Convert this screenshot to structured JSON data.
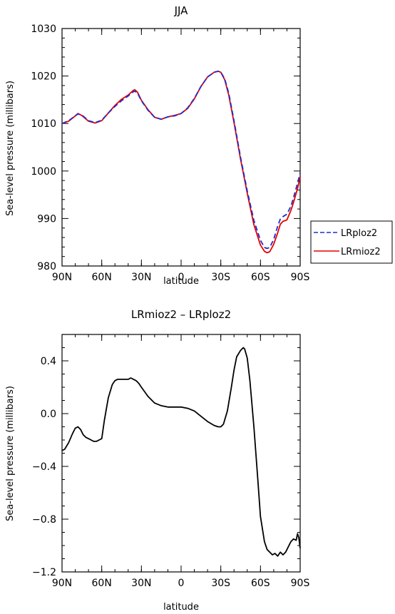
{
  "chart_data": [
    {
      "type": "line",
      "title": "JJA",
      "xlabel": "latitude",
      "ylabel": "Sea-level pressure (millibars)",
      "xlim": [
        90,
        -90
      ],
      "ylim": [
        980,
        1030
      ],
      "x_ticks": [
        90,
        60,
        30,
        0,
        -30,
        -60,
        -90
      ],
      "x_tick_labels": [
        "90N",
        "60N",
        "30N",
        "0",
        "30S",
        "60S",
        "90S"
      ],
      "y_ticks": [
        980,
        990,
        1000,
        1010,
        1020,
        1030
      ],
      "y_tick_labels": [
        "980",
        "990",
        "1000",
        "1010",
        "1020",
        "1030"
      ],
      "grid": false,
      "legend": "outside-right",
      "series": [
        {
          "name": "LRploz2",
          "color": "#1f2ecc",
          "dash": "dashed",
          "x": [
            90,
            85,
            80,
            78,
            75,
            70,
            65,
            60,
            55,
            50,
            45,
            40,
            36,
            35,
            33,
            30,
            25,
            20,
            15,
            10,
            5,
            0,
            -5,
            -10,
            -15,
            -20,
            -25,
            -28,
            -30,
            -33,
            -36,
            -40,
            -45,
            -50,
            -55,
            -60,
            -63,
            -65,
            -67,
            -70,
            -73,
            -75,
            -77,
            -80,
            -83,
            -85,
            -88,
            -90
          ],
          "y": [
            1010,
            1010.6,
            1011.6,
            1012.0,
            1011.8,
            1010.6,
            1010.2,
            1010.7,
            1012.2,
            1013.6,
            1014.8,
            1015.8,
            1016.7,
            1016.8,
            1016.4,
            1014.8,
            1012.8,
            1011.3,
            1010.9,
            1011.4,
            1011.6,
            1012.1,
            1013.3,
            1015.3,
            1017.8,
            1019.8,
            1020.8,
            1021.0,
            1020.8,
            1019.4,
            1016.4,
            1010.6,
            1002.8,
            995.8,
            989.6,
            985.4,
            983.9,
            983.7,
            983.9,
            985.6,
            988.4,
            989.9,
            990.4,
            990.9,
            992.6,
            994.4,
            997.4,
            999.6
          ]
        },
        {
          "name": "LRmioz2",
          "color": "#e60000",
          "dash": "solid",
          "x": [
            90,
            85,
            80,
            78,
            75,
            70,
            65,
            60,
            55,
            50,
            45,
            40,
            36,
            35,
            33,
            30,
            25,
            20,
            15,
            10,
            5,
            0,
            -5,
            -10,
            -15,
            -20,
            -25,
            -28,
            -30,
            -33,
            -36,
            -40,
            -45,
            -50,
            -55,
            -60,
            -63,
            -65,
            -67,
            -70,
            -73,
            -75,
            -77,
            -80,
            -83,
            -85,
            -88,
            -90
          ],
          "y": [
            1010,
            1010.5,
            1011.6,
            1012.1,
            1011.7,
            1010.5,
            1010.1,
            1010.6,
            1012.2,
            1013.8,
            1015.1,
            1016.0,
            1017.0,
            1017.1,
            1016.6,
            1014.9,
            1012.9,
            1011.3,
            1010.9,
            1011.4,
            1011.7,
            1012.1,
            1013.2,
            1015.2,
            1017.8,
            1019.8,
            1020.8,
            1021.0,
            1020.8,
            1019.2,
            1016.0,
            1010.2,
            1002.4,
            995.3,
            988.7,
            984.4,
            983.1,
            982.8,
            983.0,
            984.6,
            987.0,
            988.8,
            989.4,
            989.7,
            991.7,
            993.4,
            996.3,
            998.8
          ]
        }
      ]
    },
    {
      "type": "line",
      "title": "LRmioz2 – LRploz2",
      "xlabel": "latitude",
      "ylabel": "Sea-level pressure (millibars)",
      "xlim": [
        90,
        -90
      ],
      "ylim": [
        -1.2,
        0.6
      ],
      "x_ticks": [
        90,
        60,
        30,
        0,
        -30,
        -60,
        -90
      ],
      "x_tick_labels": [
        "90N",
        "60N",
        "30N",
        "0",
        "30S",
        "60S",
        "90S"
      ],
      "y_ticks": [
        -1.2,
        -0.8,
        -0.4,
        0.0,
        0.4
      ],
      "y_tick_labels": [
        "−1.2",
        "−0.8",
        "−0.4",
        "0.0",
        "0.4"
      ],
      "grid": false,
      "series": [
        {
          "color": "#000000",
          "x": [
            90,
            88,
            85,
            82,
            80,
            78,
            76,
            74,
            72,
            70,
            68,
            66,
            64,
            62,
            60,
            58,
            55,
            52,
            50,
            48,
            45,
            42,
            40,
            38,
            36,
            34,
            32,
            30,
            25,
            20,
            15,
            10,
            5,
            0,
            -5,
            -10,
            -15,
            -20,
            -25,
            -28,
            -30,
            -32,
            -35,
            -38,
            -40,
            -42,
            -45,
            -47,
            -48,
            -50,
            -52,
            -55,
            -58,
            -60,
            -63,
            -65,
            -67,
            -69,
            -71,
            -73,
            -75,
            -77,
            -79,
            -81,
            -83,
            -85,
            -87,
            -88,
            -89,
            -90
          ],
          "y": [
            -0.28,
            -0.27,
            -0.22,
            -0.15,
            -0.11,
            -0.1,
            -0.12,
            -0.16,
            -0.18,
            -0.19,
            -0.2,
            -0.21,
            -0.21,
            -0.2,
            -0.19,
            -0.05,
            0.12,
            0.22,
            0.25,
            0.26,
            0.26,
            0.26,
            0.26,
            0.27,
            0.26,
            0.25,
            0.23,
            0.2,
            0.13,
            0.08,
            0.06,
            0.05,
            0.05,
            0.05,
            0.04,
            0.02,
            -0.02,
            -0.06,
            -0.09,
            -0.1,
            -0.1,
            -0.08,
            0.02,
            0.2,
            0.33,
            0.43,
            0.48,
            0.5,
            0.49,
            0.42,
            0.25,
            -0.1,
            -0.5,
            -0.78,
            -0.97,
            -1.03,
            -1.05,
            -1.07,
            -1.06,
            -1.08,
            -1.05,
            -1.07,
            -1.05,
            -1.01,
            -0.97,
            -0.95,
            -0.96,
            -0.91,
            -0.94,
            -1.02
          ]
        }
      ]
    }
  ]
}
